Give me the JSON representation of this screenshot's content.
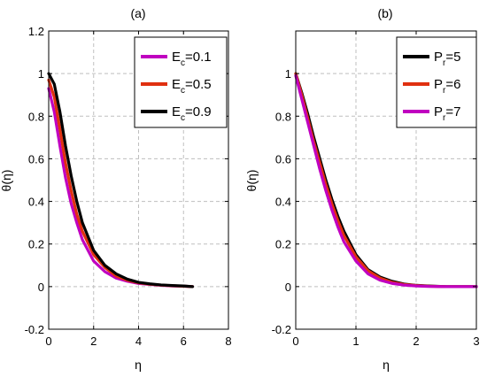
{
  "chart_data": [
    {
      "type": "line",
      "title": "(a)",
      "xlabel": "η",
      "ylabel": "θ(η)",
      "xlim": [
        0,
        8
      ],
      "ylim": [
        -0.2,
        1.2
      ],
      "xticks": [
        "0",
        "2",
        "4",
        "6",
        "8"
      ],
      "yticks": [
        "-0.2",
        "0",
        "0.2",
        "0.4",
        "0.6",
        "0.8",
        "1",
        "1.2"
      ],
      "grid": true,
      "legend_position": "top-right",
      "series": [
        {
          "name": "Ec=0.1",
          "label_main": "E",
          "label_sub": "c",
          "label_rest": "=0.1",
          "color": "#c000c0",
          "x": [
            0,
            0.25,
            0.5,
            0.75,
            1,
            1.25,
            1.5,
            2,
            2.5,
            3,
            3.5,
            4,
            4.5,
            5,
            5.5,
            6,
            6.4
          ],
          "y": [
            0.93,
            0.82,
            0.66,
            0.51,
            0.39,
            0.3,
            0.22,
            0.12,
            0.07,
            0.04,
            0.025,
            0.015,
            0.01,
            0.006,
            0.003,
            0.002,
            0.0
          ]
        },
        {
          "name": "Ec=0.5",
          "label_main": "E",
          "label_sub": "c",
          "label_rest": "=0.5",
          "color": "#e03010",
          "x": [
            0,
            0.25,
            0.5,
            0.75,
            1,
            1.25,
            1.5,
            2,
            2.5,
            3,
            3.5,
            4,
            4.5,
            5,
            5.5,
            6,
            6.4
          ],
          "y": [
            0.97,
            0.89,
            0.74,
            0.58,
            0.45,
            0.34,
            0.26,
            0.15,
            0.09,
            0.05,
            0.03,
            0.018,
            0.011,
            0.007,
            0.004,
            0.002,
            0.0
          ]
        },
        {
          "name": "Ec=0.9",
          "label_main": "E",
          "label_sub": "c",
          "label_rest": "=0.9",
          "color": "#000000",
          "x": [
            0,
            0.25,
            0.5,
            0.75,
            1,
            1.25,
            1.5,
            2,
            2.5,
            3,
            3.5,
            4,
            4.5,
            5,
            5.5,
            6,
            6.4
          ],
          "y": [
            1.0,
            0.95,
            0.82,
            0.66,
            0.52,
            0.4,
            0.3,
            0.17,
            0.1,
            0.06,
            0.035,
            0.02,
            0.013,
            0.008,
            0.005,
            0.003,
            0.0
          ]
        }
      ]
    },
    {
      "type": "line",
      "title": "(b)",
      "xlabel": "η",
      "ylabel": "θ(η)",
      "xlim": [
        0,
        3
      ],
      "ylim": [
        -0.2,
        1.2
      ],
      "xticks": [
        "0",
        "1",
        "2",
        "3"
      ],
      "yticks": [
        "-0.2",
        "0",
        "0.2",
        "0.4",
        "0.6",
        "0.8",
        "1"
      ],
      "grid": true,
      "legend_position": "top-right",
      "series": [
        {
          "name": "Pr=5",
          "label_main": "P",
          "label_sub": "r",
          "label_rest": "=5",
          "color": "#000000",
          "x": [
            0,
            0.1,
            0.2,
            0.3,
            0.4,
            0.5,
            0.6,
            0.7,
            0.8,
            1.0,
            1.2,
            1.4,
            1.6,
            1.8,
            2.0,
            2.2,
            2.5,
            3.0
          ],
          "y": [
            1.0,
            0.91,
            0.81,
            0.7,
            0.6,
            0.5,
            0.41,
            0.33,
            0.26,
            0.15,
            0.08,
            0.045,
            0.025,
            0.012,
            0.006,
            0.003,
            0.0,
            0.0
          ]
        },
        {
          "name": "Pr=6",
          "label_main": "P",
          "label_sub": "r",
          "label_rest": "=6",
          "color": "#e03010",
          "x": [
            0,
            0.1,
            0.2,
            0.3,
            0.4,
            0.5,
            0.6,
            0.7,
            0.8,
            1.0,
            1.2,
            1.4,
            1.6,
            1.8,
            2.0,
            2.2,
            2.5,
            3.0
          ],
          "y": [
            1.0,
            0.9,
            0.79,
            0.68,
            0.58,
            0.48,
            0.39,
            0.31,
            0.24,
            0.14,
            0.075,
            0.04,
            0.02,
            0.01,
            0.005,
            0.002,
            0.0,
            0.0
          ]
        },
        {
          "name": "Pr=7",
          "label_main": "P",
          "label_sub": "r",
          "label_rest": "=7",
          "color": "#c000c0",
          "x": [
            0,
            0.1,
            0.2,
            0.3,
            0.4,
            0.5,
            0.6,
            0.7,
            0.8,
            1.0,
            1.2,
            1.4,
            1.6,
            1.8,
            2.0,
            2.2,
            2.5,
            3.0
          ],
          "y": [
            0.99,
            0.88,
            0.77,
            0.66,
            0.55,
            0.45,
            0.36,
            0.28,
            0.21,
            0.12,
            0.06,
            0.03,
            0.015,
            0.007,
            0.003,
            0.001,
            0.0,
            0.0
          ]
        }
      ]
    }
  ]
}
